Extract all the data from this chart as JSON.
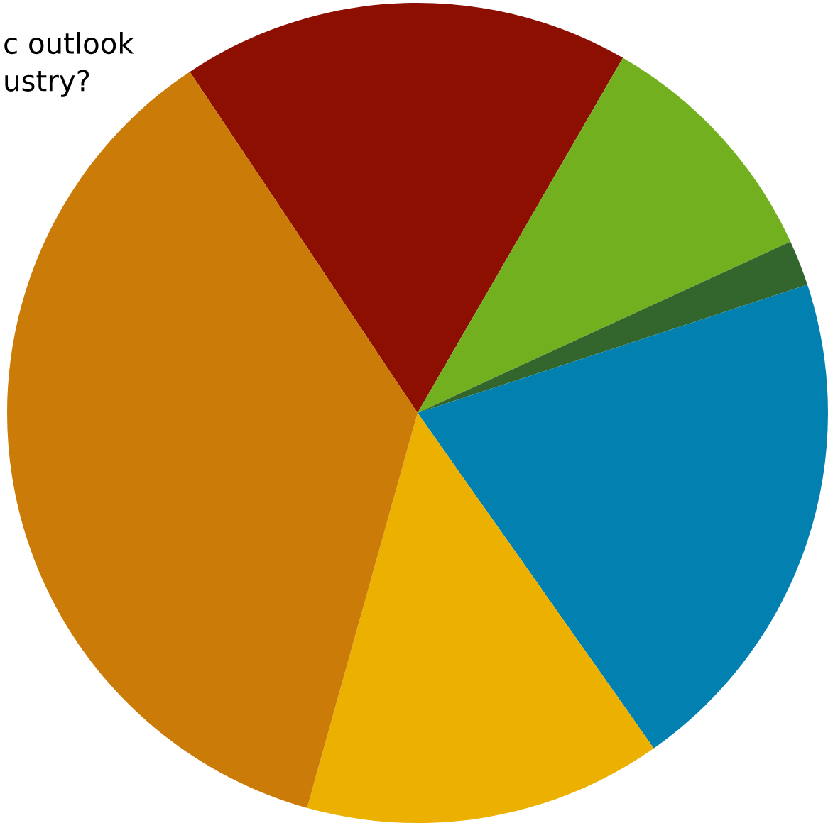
{
  "chart_data": {
    "type": "pie",
    "title": "c outlook\nustry?",
    "categories": [
      null,
      null,
      null,
      null,
      null,
      null
    ],
    "values": [
      17.7,
      9.8,
      1.8,
      20.3,
      14.1,
      36.3
    ],
    "colors": [
      "#8c0f02",
      "#72b01f",
      "#33662d",
      "#0281b1",
      "#ebb000",
      "#cb7b07"
    ],
    "legend": false
  }
}
